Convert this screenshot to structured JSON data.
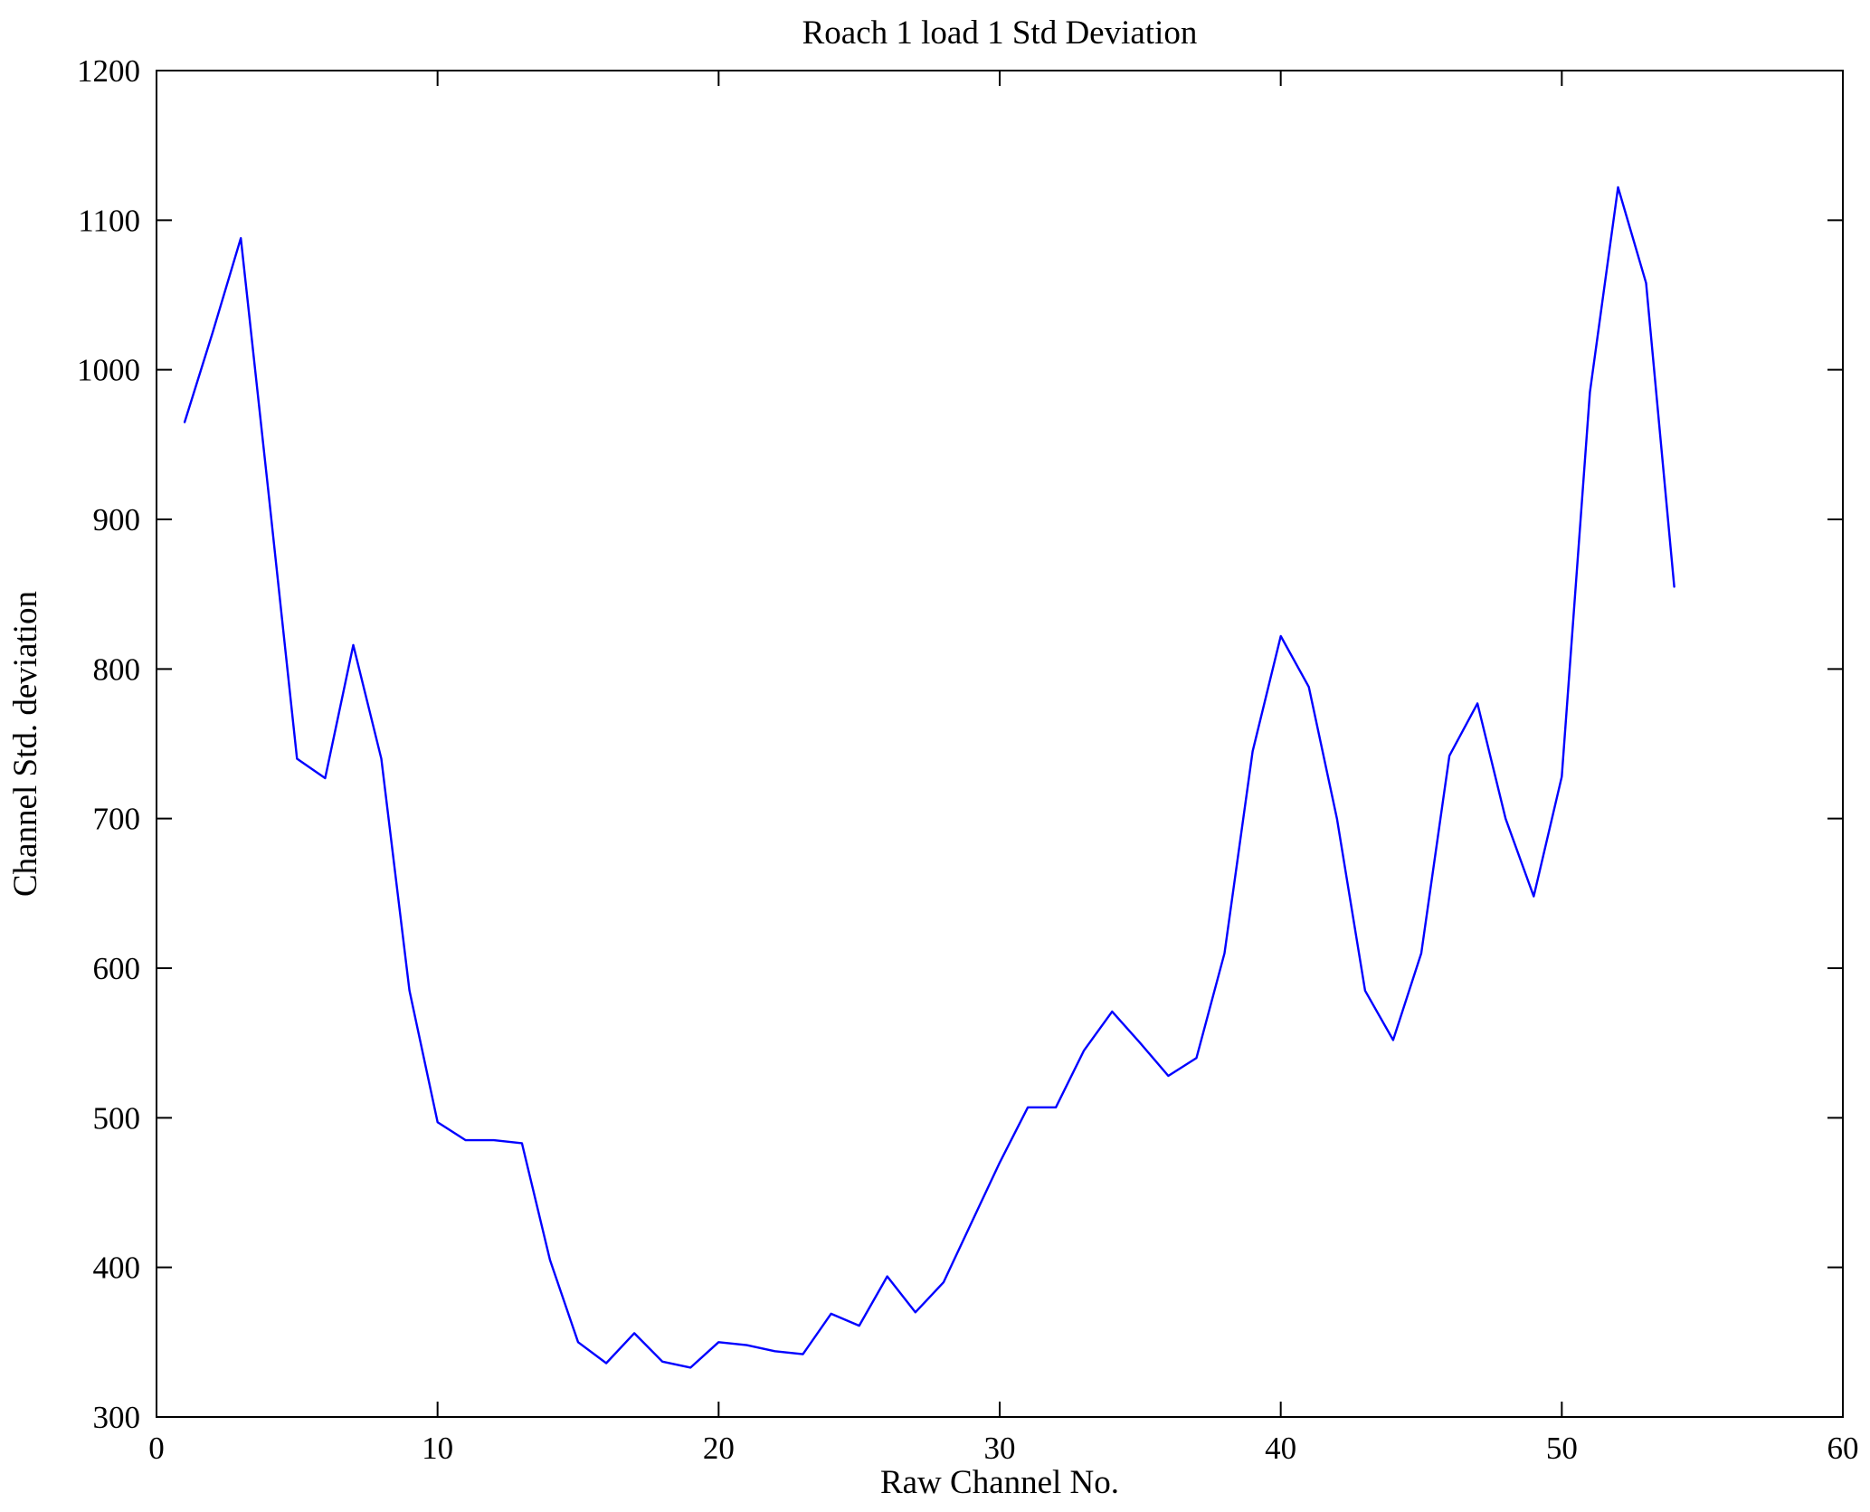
{
  "chart_data": {
    "type": "line",
    "title": "Roach 1 load 1 Std Deviation",
    "xlabel": "Raw Channel No.",
    "ylabel": "Channel Std. deviation",
    "xlim": [
      0,
      60
    ],
    "ylim": [
      300,
      1200
    ],
    "xticks": [
      0,
      10,
      20,
      30,
      40,
      50,
      60
    ],
    "yticks": [
      300,
      400,
      500,
      600,
      700,
      800,
      900,
      1000,
      1100,
      1200
    ],
    "grid": false,
    "line_color": "#0000FF",
    "frame_color": "#000000",
    "series": [
      {
        "name": "channel-std-deviation",
        "color": "#0000FF",
        "x": [
          1,
          2,
          3,
          4,
          5,
          6,
          7,
          8,
          9,
          10,
          11,
          12,
          13,
          14,
          15,
          16,
          17,
          18,
          19,
          20,
          21,
          22,
          23,
          24,
          25,
          26,
          27,
          28,
          29,
          30,
          31,
          32,
          33,
          34,
          35,
          36,
          37,
          38,
          39,
          40,
          41,
          42,
          43,
          44,
          45,
          46,
          47,
          48,
          49,
          50,
          51,
          52,
          53,
          54
        ],
        "y": [
          965,
          1025,
          1088,
          915,
          740,
          727,
          816,
          740,
          585,
          497,
          485,
          485,
          483,
          405,
          350,
          336,
          356,
          337,
          333,
          350,
          348,
          344,
          342,
          369,
          361,
          394,
          370,
          390,
          430,
          470,
          507,
          507,
          545,
          571,
          550,
          528,
          540,
          610,
          745,
          822,
          788,
          700,
          585,
          552,
          610,
          742,
          777,
          700,
          648,
          728,
          985,
          1122,
          1058,
          855
        ]
      }
    ]
  }
}
